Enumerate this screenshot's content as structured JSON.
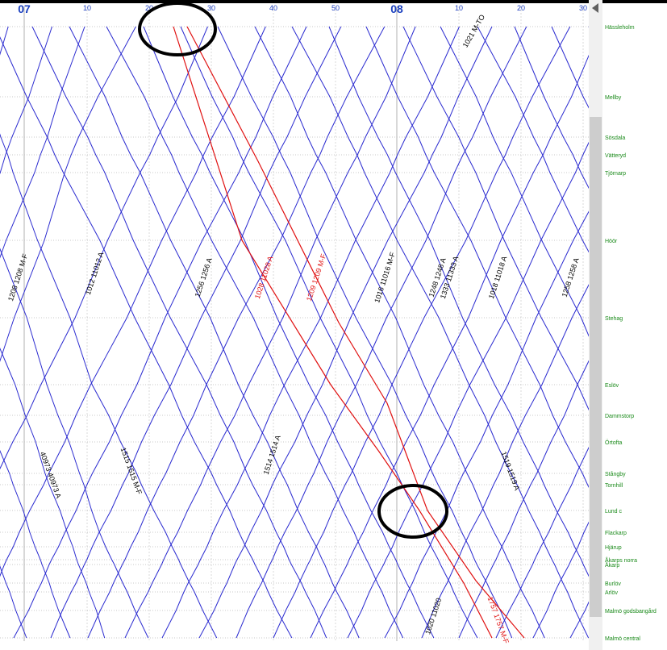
{
  "time_axis": [
    "07",
    "10",
    "20",
    "30",
    "40",
    "50",
    "08",
    "10",
    "20",
    "30"
  ],
  "stations": [
    "Hässleholm",
    "Mellby",
    "Sösdala",
    "Vätteryd",
    "Tjörnarp",
    "Höör",
    "Stehag",
    "Eslöv",
    "Dammstorp",
    "Örtofta",
    "Stångby",
    "Tornhill",
    "Lund c",
    "Flackarp",
    "Hjärup",
    "Åkarps norra",
    "Åkarp",
    "Burlöv",
    "Arlöv",
    "Malmö godsbangård",
    "Malmö central"
  ],
  "trains": [
    "1012 11012 A",
    "1208 1208 M-F",
    "1256 1256 A",
    "1028 11028 A",
    "1209 1209 M-F",
    "1016 11016 M-F",
    "1248 1248 A",
    "1333 11333 A",
    "1018 11018 A",
    "1258 1258 A",
    "1514 1514 A",
    "1515 1515 M-F",
    "1519 1519 A",
    "40973 40973 A",
    "1021 M-TO",
    "1757 1757 M-F",
    "1020 11020"
  ]
}
